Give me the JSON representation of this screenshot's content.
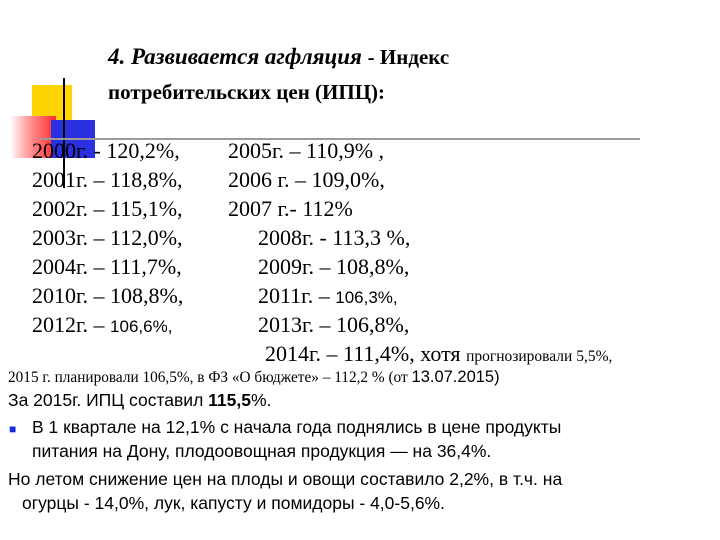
{
  "title": {
    "accent": "4. Развивается агфляция",
    "rest": "- Индекс",
    "line2": "потребительских цен (ИПЦ):"
  },
  "years_left": [
    "2000г. - 120,2%,",
    "2001г. – 118,8%,",
    "2002г. – 115,1%,",
    "2003г. – 112,0%,",
    "2004г. – 111,7%,",
    "2010г. – 108,8%,"
  ],
  "year_2012": {
    "prefix": "2012г. – ",
    "value": "106,6%,"
  },
  "years_right": [
    "2005г. – 110,9% ,",
    "2006 г. – 109,0%,",
    "2007 г.- 112%",
    "2008г. - 113,3 %,",
    "2009г. – 108,8%,"
  ],
  "year_2011": {
    "prefix": "2011г. – ",
    "value": "106,3%,"
  },
  "year_2013": "2013г. – 106,8%,",
  "year_2014": {
    "main": "2014г. – 111,4%, хотя ",
    "small": "прогнозировали 5,5%,"
  },
  "note_2015": {
    "main": "2015 г. планировали 106,5%, в ФЗ «О бюджете» – 112,2 % (от ",
    "date": "13.07.2015)"
  },
  "cpi_2015": {
    "prefix": "За 2015г. ИПЦ составил ",
    "value": "115,5",
    "suffix": "%."
  },
  "bullet": {
    "symbol": "■",
    "line1": "В 1 квартале на 12,1% с начала года поднялись в цене продукты",
    "line2": "питания на Дону, плодоовощная продукция  — на 36,4%."
  },
  "summer": {
    "line1": "Но летом снижение цен на плоды и овощи составило 2,2%, в т.ч. на",
    "line2": "огурцы - 14,0%, лук, капусту и помидоры - 4,0-5,6%."
  }
}
